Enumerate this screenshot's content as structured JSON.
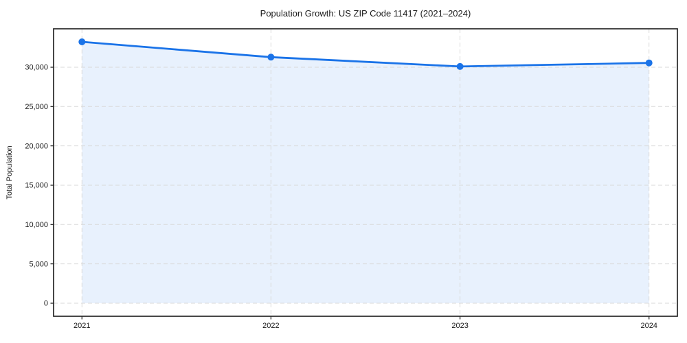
{
  "chart_data": {
    "type": "line",
    "title": "Population Growth: US ZIP Code 11417 (2021–2024)",
    "xlabel": "",
    "ylabel": "Total Population",
    "x": [
      2021,
      2022,
      2023,
      2024
    ],
    "x_tick_labels": [
      "2021",
      "2022",
      "2023",
      "2024"
    ],
    "series": [
      {
        "name": "Total Population",
        "values": [
          33220,
          31280,
          30090,
          30550
        ],
        "line_color": "#1a73e8",
        "marker": "circle",
        "marker_radius": 5,
        "area_fill": true,
        "area_fill_color": "rgba(26,115,232,0.10)",
        "area_baseline": 0
      }
    ],
    "y_ticks": [
      0,
      5000,
      10000,
      15000,
      20000,
      25000,
      30000
    ],
    "y_tick_labels": [
      "0",
      "5,000",
      "10,000",
      "15,000",
      "20,000",
      "25,000",
      "30,000"
    ],
    "xlim": [
      2020.85,
      2024.15
    ],
    "ylim": [
      -1660,
      34880
    ],
    "grid": {
      "visible": true,
      "style": "dashed",
      "color": "#d9d9d9"
    },
    "legend": {
      "visible": false
    },
    "spine_color": "#262626",
    "text_color": "#1a1a1a",
    "plot_background": "#ffffff"
  }
}
